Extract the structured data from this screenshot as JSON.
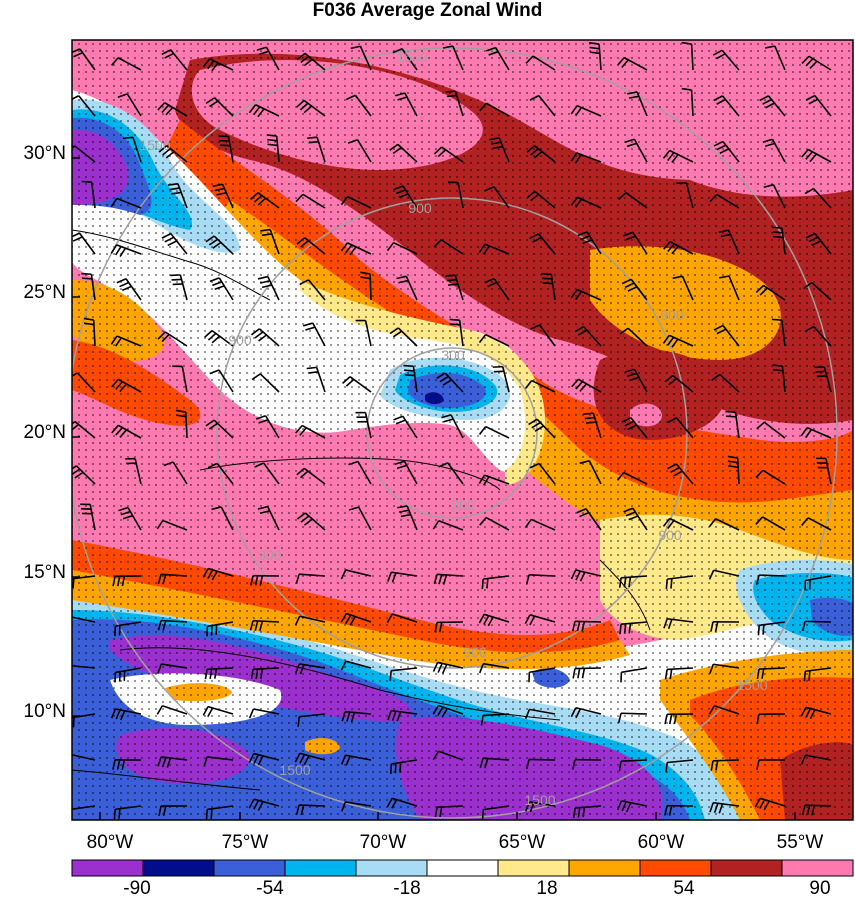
{
  "title": "F036 Average Zonal Wind",
  "map": {
    "lat_labels": [
      "30°N",
      "25°N",
      "20°N",
      "15°N",
      "10°N"
    ],
    "lon_labels": [
      "80°W",
      "75°W",
      "70°W",
      "65°W",
      "60°W",
      "55°W"
    ],
    "range_rings": [
      {
        "label": "300",
        "label_positions": 2
      },
      {
        "label": "900",
        "label_positions": 6
      },
      {
        "label": "1500",
        "label_positions": 5
      }
    ],
    "stipple": true,
    "wind_barbs": true,
    "coastlines": true
  },
  "colorbar": {
    "ticks": [
      "-90",
      "-54",
      "-18",
      "18",
      "54",
      "90"
    ],
    "colors": [
      "#9b30ce",
      "#000d8c",
      "#3b5fd9",
      "#00b4ee",
      "#a8dcf4",
      "#ffffff",
      "#ffe98a",
      "#ffa500",
      "#ff4a00",
      "#b22222",
      "#ff7ab0"
    ]
  },
  "colors": {
    "background_field": "#ff7ab0",
    "ring": "#a0a0a0",
    "coast": "#000000"
  }
}
